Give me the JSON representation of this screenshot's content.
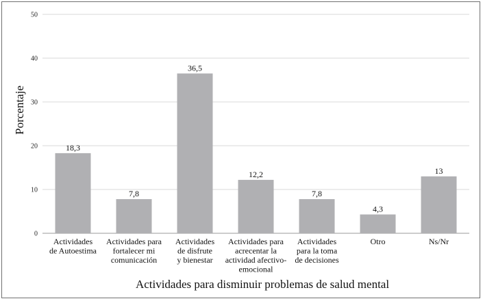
{
  "chart_data": {
    "type": "bar",
    "xlabel": "Actividades para disminuir problemas de salud mental",
    "ylabel": "Porcentaje",
    "ylim": [
      0,
      50
    ],
    "yticks": [
      0,
      10,
      20,
      30,
      40,
      50
    ],
    "grid": true,
    "bar_color": "#b0b0b3",
    "categories": [
      [
        "Actividades",
        "de Autoestima"
      ],
      [
        "Actividades para",
        "fortalecer mi",
        "comunicación"
      ],
      [
        "Actividades",
        "de disfrute",
        "y bienestar"
      ],
      [
        "Actividades para",
        "acrecentar la",
        "actividad afectivo-",
        "emocional"
      ],
      [
        "Actividades",
        "para la toma",
        "de decisiones"
      ],
      [
        "Otro"
      ],
      [
        "Ns/Nr"
      ]
    ],
    "values": [
      18.3,
      7.8,
      36.5,
      12.2,
      7.8,
      4.3,
      13
    ],
    "value_labels": [
      "18,3",
      "7,8",
      "36,5",
      "12,2",
      "7,8",
      "4,3",
      "13"
    ]
  }
}
